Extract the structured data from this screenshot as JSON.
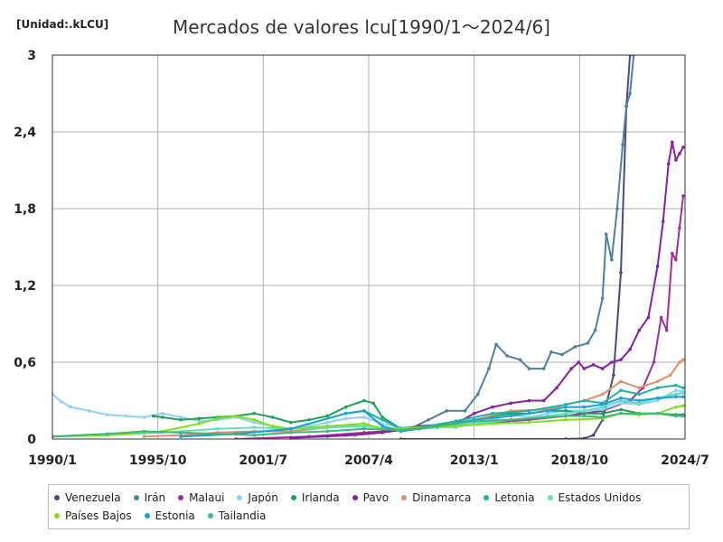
{
  "unit_label": "[Unidad:.kLCU]",
  "title": "Mercados de valores lcu[1990/1～2024/6]",
  "chart_data": {
    "type": "line",
    "title": "Mercados de valores lcu[1990/1～2024/6]",
    "ylabel": "[Unidad:.kLCU]",
    "xlabel": "",
    "x_range": [
      1990.0,
      2024.5
    ],
    "ylim": [
      0,
      3
    ],
    "y_ticks": [
      {
        "value": 0,
        "label": "0"
      },
      {
        "value": 0.6,
        "label": "0,6"
      },
      {
        "value": 1.2,
        "label": "1,2"
      },
      {
        "value": 1.8,
        "label": "1,8"
      },
      {
        "value": 2.4,
        "label": "2,4"
      },
      {
        "value": 3,
        "label": "3"
      }
    ],
    "x_ticks": [
      {
        "value": 1990.0,
        "label": "1990/1"
      },
      {
        "value": 1995.75,
        "label": "1995/10"
      },
      {
        "value": 2001.5,
        "label": "2001/7"
      },
      {
        "value": 2007.25,
        "label": "2007/4"
      },
      {
        "value": 2013.0,
        "label": "2013/1"
      },
      {
        "value": 2018.75,
        "label": "2018/10"
      },
      {
        "value": 2024.5,
        "label": "2024/7"
      }
    ],
    "grid": true,
    "legend_position": "bottom",
    "series": [
      {
        "name": "Venezuela",
        "color": "#4a4a7a",
        "points": [
          [
            2009,
            0
          ],
          [
            2018,
            0.0
          ],
          [
            2019,
            0.005
          ],
          [
            2019.5,
            0.03
          ],
          [
            2020.0,
            0.15
          ],
          [
            2020.6,
            0.5
          ],
          [
            2021.0,
            1.3
          ],
          [
            2021.3,
            2.6
          ],
          [
            2021.5,
            3.0
          ]
        ]
      },
      {
        "name": "Irán",
        "color": "#4f7fa3",
        "points": [
          [
            2003,
            0.01
          ],
          [
            2005,
            0.02
          ],
          [
            2006.5,
            0.03
          ],
          [
            2008,
            0.05
          ],
          [
            2009.5,
            0.08
          ],
          [
            2010.5,
            0.15
          ],
          [
            2011.5,
            0.22
          ],
          [
            2012.5,
            0.22
          ],
          [
            2013.2,
            0.35
          ],
          [
            2013.8,
            0.55
          ],
          [
            2014.2,
            0.74
          ],
          [
            2014.8,
            0.65
          ],
          [
            2015.5,
            0.62
          ],
          [
            2016.0,
            0.55
          ],
          [
            2016.8,
            0.55
          ],
          [
            2017.2,
            0.68
          ],
          [
            2017.8,
            0.66
          ],
          [
            2018.5,
            0.72
          ],
          [
            2019.2,
            0.75
          ],
          [
            2019.6,
            0.85
          ],
          [
            2020.0,
            1.1
          ],
          [
            2020.2,
            1.6
          ],
          [
            2020.5,
            1.4
          ],
          [
            2020.8,
            1.8
          ],
          [
            2021.1,
            2.3
          ],
          [
            2021.3,
            2.6
          ],
          [
            2021.5,
            2.7
          ],
          [
            2021.7,
            3.0
          ]
        ]
      },
      {
        "name": "Malaui",
        "color": "#a62ba0",
        "points": [
          [
            2000,
            0.0
          ],
          [
            2004,
            0.02
          ],
          [
            2007,
            0.05
          ],
          [
            2010,
            0.08
          ],
          [
            2013,
            0.12
          ],
          [
            2016,
            0.15
          ],
          [
            2018,
            0.18
          ],
          [
            2020,
            0.22
          ],
          [
            2021.5,
            0.3
          ],
          [
            2022.2,
            0.4
          ],
          [
            2022.8,
            0.6
          ],
          [
            2023.2,
            0.95
          ],
          [
            2023.5,
            0.85
          ],
          [
            2023.8,
            1.45
          ],
          [
            2024.0,
            1.4
          ],
          [
            2024.2,
            1.65
          ],
          [
            2024.4,
            1.9
          ]
        ]
      },
      {
        "name": "Japón",
        "color": "#8fd1f3",
        "points": [
          [
            1990.0,
            0.35
          ],
          [
            1990.5,
            0.29
          ],
          [
            1991,
            0.25
          ],
          [
            1992,
            0.22
          ],
          [
            1993,
            0.19
          ],
          [
            1994,
            0.18
          ],
          [
            1995,
            0.17
          ],
          [
            1996,
            0.2
          ],
          [
            1997,
            0.17
          ],
          [
            1998,
            0.14
          ],
          [
            1999,
            0.15
          ],
          [
            2000,
            0.17
          ],
          [
            2001,
            0.13
          ],
          [
            2002,
            0.1
          ],
          [
            2003,
            0.08
          ],
          [
            2004,
            0.1
          ],
          [
            2005,
            0.13
          ],
          [
            2006,
            0.16
          ],
          [
            2007,
            0.17
          ],
          [
            2008,
            0.12
          ],
          [
            2009,
            0.09
          ],
          [
            2010,
            0.1
          ],
          [
            2011,
            0.09
          ],
          [
            2012,
            0.09
          ],
          [
            2013,
            0.13
          ],
          [
            2014,
            0.15
          ],
          [
            2015,
            0.19
          ],
          [
            2016,
            0.17
          ],
          [
            2017,
            0.2
          ],
          [
            2018,
            0.22
          ],
          [
            2019,
            0.22
          ],
          [
            2020,
            0.23
          ],
          [
            2021,
            0.28
          ],
          [
            2022,
            0.27
          ],
          [
            2023,
            0.3
          ],
          [
            2024,
            0.38
          ],
          [
            2024.4,
            0.37
          ]
        ]
      },
      {
        "name": "Irlanda",
        "color": "#1ea05a",
        "points": [
          [
            1995.5,
            0.18
          ],
          [
            1996,
            0.17
          ],
          [
            1997,
            0.15
          ],
          [
            1998,
            0.16
          ],
          [
            1999,
            0.17
          ],
          [
            2000,
            0.18
          ],
          [
            2001,
            0.2
          ],
          [
            2002,
            0.17
          ],
          [
            2003,
            0.13
          ],
          [
            2004,
            0.15
          ],
          [
            2005,
            0.18
          ],
          [
            2006,
            0.25
          ],
          [
            2007,
            0.3
          ],
          [
            2007.5,
            0.28
          ],
          [
            2008,
            0.17
          ],
          [
            2009,
            0.08
          ],
          [
            2010,
            0.1
          ],
          [
            2011,
            0.1
          ],
          [
            2012,
            0.12
          ],
          [
            2013,
            0.15
          ],
          [
            2014,
            0.18
          ],
          [
            2015,
            0.2
          ],
          [
            2016,
            0.2
          ],
          [
            2017,
            0.22
          ],
          [
            2018,
            0.22
          ],
          [
            2019,
            0.2
          ],
          [
            2020,
            0.2
          ],
          [
            2021,
            0.23
          ],
          [
            2022,
            0.2
          ],
          [
            2023,
            0.2
          ],
          [
            2024,
            0.19
          ],
          [
            2024.4,
            0.19
          ]
        ]
      },
      {
        "name": "Pavo",
        "color": "#8a1fa7",
        "points": [
          [
            2003,
            0.01
          ],
          [
            2006,
            0.03
          ],
          [
            2008,
            0.05
          ],
          [
            2010,
            0.1
          ],
          [
            2012,
            0.12
          ],
          [
            2013,
            0.2
          ],
          [
            2014,
            0.25
          ],
          [
            2015,
            0.28
          ],
          [
            2016,
            0.3
          ],
          [
            2016.8,
            0.3
          ],
          [
            2017.5,
            0.4
          ],
          [
            2018.3,
            0.55
          ],
          [
            2018.7,
            0.6
          ],
          [
            2019.0,
            0.55
          ],
          [
            2019.5,
            0.58
          ],
          [
            2020,
            0.55
          ],
          [
            2020.5,
            0.6
          ],
          [
            2021,
            0.62
          ],
          [
            2021.5,
            0.7
          ],
          [
            2022,
            0.85
          ],
          [
            2022.5,
            0.95
          ],
          [
            2023,
            1.35
          ],
          [
            2023.3,
            1.7
          ],
          [
            2023.6,
            2.15
          ],
          [
            2023.8,
            2.32
          ],
          [
            2024.0,
            2.18
          ],
          [
            2024.2,
            2.23
          ],
          [
            2024.4,
            2.28
          ]
        ]
      },
      {
        "name": "Dinamarca",
        "color": "#e08f6a",
        "points": [
          [
            1995,
            0.02
          ],
          [
            1997,
            0.03
          ],
          [
            1999,
            0.05
          ],
          [
            2001,
            0.06
          ],
          [
            2003,
            0.06
          ],
          [
            2005,
            0.09
          ],
          [
            2007,
            0.12
          ],
          [
            2008,
            0.08
          ],
          [
            2009,
            0.08
          ],
          [
            2011,
            0.1
          ],
          [
            2013,
            0.15
          ],
          [
            2015,
            0.22
          ],
          [
            2017,
            0.23
          ],
          [
            2018,
            0.27
          ],
          [
            2019,
            0.3
          ],
          [
            2020,
            0.35
          ],
          [
            2021,
            0.45
          ],
          [
            2022,
            0.4
          ],
          [
            2023,
            0.45
          ],
          [
            2023.7,
            0.5
          ],
          [
            2024.2,
            0.6
          ],
          [
            2024.4,
            0.62
          ]
        ]
      },
      {
        "name": "Letonia",
        "color": "#20b3a0",
        "points": [
          [
            1997,
            0.02
          ],
          [
            2000,
            0.04
          ],
          [
            2003,
            0.08
          ],
          [
            2006,
            0.2
          ],
          [
            2007,
            0.22
          ],
          [
            2008,
            0.15
          ],
          [
            2009,
            0.08
          ],
          [
            2010,
            0.09
          ],
          [
            2012,
            0.14
          ],
          [
            2014,
            0.2
          ],
          [
            2016,
            0.22
          ],
          [
            2018,
            0.27
          ],
          [
            2019,
            0.3
          ],
          [
            2020,
            0.28
          ],
          [
            2021,
            0.38
          ],
          [
            2022,
            0.35
          ],
          [
            2023,
            0.4
          ],
          [
            2024,
            0.42
          ],
          [
            2024.4,
            0.4
          ]
        ]
      },
      {
        "name": "Estados Unidos",
        "color": "#5fe0c0",
        "points": [
          [
            1990,
            0.02
          ],
          [
            1993,
            0.03
          ],
          [
            1996,
            0.05
          ],
          [
            1999,
            0.08
          ],
          [
            2001,
            0.09
          ],
          [
            2003,
            0.08
          ],
          [
            2005,
            0.09
          ],
          [
            2007,
            0.1
          ],
          [
            2009,
            0.07
          ],
          [
            2011,
            0.09
          ],
          [
            2013,
            0.12
          ],
          [
            2015,
            0.15
          ],
          [
            2017,
            0.18
          ],
          [
            2018,
            0.2
          ],
          [
            2019,
            0.22
          ],
          [
            2020,
            0.25
          ],
          [
            2021,
            0.3
          ],
          [
            2022,
            0.28
          ],
          [
            2023,
            0.32
          ],
          [
            2024,
            0.35
          ],
          [
            2024.4,
            0.36
          ]
        ]
      },
      {
        "name": "Países Bajos",
        "color": "#80e020",
        "points": [
          [
            1990,
            0.02
          ],
          [
            1993,
            0.03
          ],
          [
            1996,
            0.06
          ],
          [
            1998,
            0.12
          ],
          [
            1999,
            0.16
          ],
          [
            2000,
            0.18
          ],
          [
            2001,
            0.15
          ],
          [
            2002,
            0.1
          ],
          [
            2003,
            0.08
          ],
          [
            2005,
            0.1
          ],
          [
            2007,
            0.12
          ],
          [
            2008,
            0.08
          ],
          [
            2010,
            0.09
          ],
          [
            2012,
            0.1
          ],
          [
            2014,
            0.12
          ],
          [
            2016,
            0.13
          ],
          [
            2018,
            0.15
          ],
          [
            2020,
            0.16
          ],
          [
            2021,
            0.2
          ],
          [
            2022,
            0.19
          ],
          [
            2023,
            0.2
          ],
          [
            2024,
            0.25
          ],
          [
            2024.4,
            0.26
          ]
        ]
      },
      {
        "name": "Estonia",
        "color": "#1aa0d8",
        "points": [
          [
            1997,
            0.02
          ],
          [
            2000,
            0.04
          ],
          [
            2003,
            0.08
          ],
          [
            2006,
            0.2
          ],
          [
            2007,
            0.22
          ],
          [
            2008,
            0.1
          ],
          [
            2009,
            0.06
          ],
          [
            2011,
            0.1
          ],
          [
            2013,
            0.15
          ],
          [
            2015,
            0.18
          ],
          [
            2017,
            0.22
          ],
          [
            2018,
            0.25
          ],
          [
            2019,
            0.25
          ],
          [
            2020,
            0.27
          ],
          [
            2021,
            0.32
          ],
          [
            2022,
            0.3
          ],
          [
            2023,
            0.32
          ],
          [
            2024,
            0.33
          ],
          [
            2024.4,
            0.33
          ]
        ]
      },
      {
        "name": "Tailandia",
        "color": "#3cb878",
        "points": [
          [
            1990,
            0.02
          ],
          [
            1993,
            0.04
          ],
          [
            1995,
            0.06
          ],
          [
            1997,
            0.05
          ],
          [
            1999,
            0.04
          ],
          [
            2001,
            0.03
          ],
          [
            2003,
            0.05
          ],
          [
            2005,
            0.06
          ],
          [
            2007,
            0.08
          ],
          [
            2009,
            0.07
          ],
          [
            2011,
            0.1
          ],
          [
            2013,
            0.14
          ],
          [
            2015,
            0.15
          ],
          [
            2017,
            0.17
          ],
          [
            2018,
            0.18
          ],
          [
            2019,
            0.18
          ],
          [
            2020,
            0.17
          ],
          [
            2021,
            0.2
          ],
          [
            2022,
            0.2
          ],
          [
            2023,
            0.2
          ],
          [
            2024,
            0.18
          ],
          [
            2024.4,
            0.18
          ]
        ]
      }
    ]
  }
}
